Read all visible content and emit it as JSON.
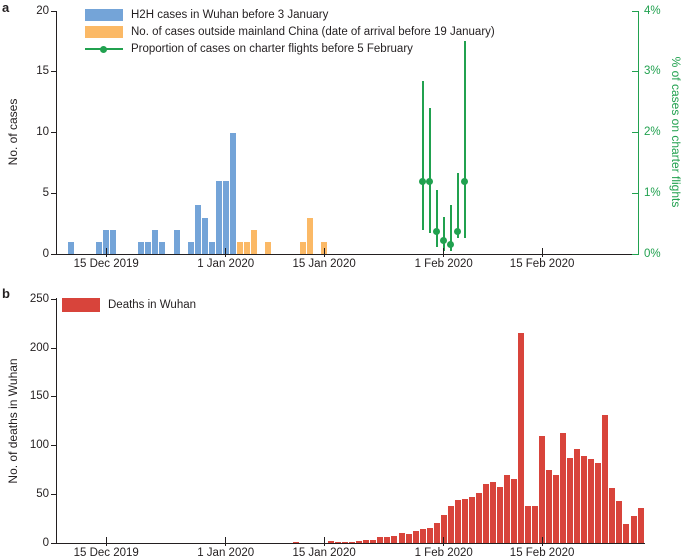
{
  "figure": {
    "panel_a_label": "a",
    "panel_b_label": "b"
  },
  "colors": {
    "h2h_blue": "#74a4d8",
    "outside_orange": "#fbb966",
    "charter_green": "#21a14f",
    "deaths_red": "#d8443b",
    "axis_black": "#231f20"
  },
  "chart_data": [
    {
      "panel": "a",
      "type": "bar",
      "ylabel": "No. of cases",
      "ylim": [
        0,
        20
      ],
      "yticks": [
        0,
        5,
        10,
        15,
        20
      ],
      "y2label": "% of cases on charter flights",
      "y2lim_pct": [
        0,
        4
      ],
      "y2ticks": [
        "0%",
        "1%",
        "2%",
        "3%",
        "4%"
      ],
      "xticks": [
        {
          "date": "2019-12-15",
          "label": "15 Dec 2019"
        },
        {
          "date": "2020-01-01",
          "label": "1 Jan 2020"
        },
        {
          "date": "2020-01-15",
          "label": "15 Jan 2020"
        },
        {
          "date": "2020-02-01",
          "label": "1 Feb 2020"
        },
        {
          "date": "2020-02-15",
          "label": "15 Feb 2020"
        }
      ],
      "series": [
        {
          "name": "H2H cases in Wuhan before 3 January",
          "type": "bar",
          "color": "#74a4d8",
          "data": [
            [
              "2019-12-10",
              1
            ],
            [
              "2019-12-14",
              1
            ],
            [
              "2019-12-15",
              2
            ],
            [
              "2019-12-16",
              2
            ],
            [
              "2019-12-20",
              1
            ],
            [
              "2019-12-21",
              1
            ],
            [
              "2019-12-22",
              2
            ],
            [
              "2019-12-23",
              1
            ],
            [
              "2019-12-25",
              2
            ],
            [
              "2019-12-27",
              1
            ],
            [
              "2019-12-28",
              4
            ],
            [
              "2019-12-29",
              3
            ],
            [
              "2019-12-30",
              1
            ],
            [
              "2019-12-31",
              6
            ],
            [
              "2020-01-01",
              6
            ],
            [
              "2020-01-02",
              10
            ]
          ]
        },
        {
          "name": "No. of cases outside mainland China (date of arrival before 19 January)",
          "type": "bar",
          "color": "#fbb966",
          "data": [
            [
              "2020-01-03",
              1
            ],
            [
              "2020-01-04",
              1
            ],
            [
              "2020-01-05",
              2
            ],
            [
              "2020-01-07",
              1
            ],
            [
              "2020-01-12",
              1
            ],
            [
              "2020-01-13",
              3
            ],
            [
              "2020-01-15",
              1
            ]
          ]
        },
        {
          "name": "Proportion of cases on charter flights before 5 February",
          "type": "scatter-errorbar",
          "axis": "right",
          "color": "#21a14f",
          "data": [
            [
              "2020-01-29",
              1.2,
              0.4,
              2.85
            ],
            [
              "2020-01-30",
              1.2,
              0.35,
              2.4
            ],
            [
              "2020-01-31",
              0.37,
              0.12,
              1.05
            ],
            [
              "2020-02-01",
              0.22,
              0.05,
              0.61
            ],
            [
              "2020-02-02",
              0.15,
              0.05,
              0.8
            ],
            [
              "2020-02-03",
              0.37,
              0.26,
              1.33
            ],
            [
              "2020-02-04",
              1.2,
              0.26,
              3.5
            ]
          ]
        }
      ]
    },
    {
      "panel": "b",
      "type": "bar",
      "ylabel": "No. of deaths in Wuhan",
      "ylim": [
        0,
        250
      ],
      "yticks": [
        0,
        50,
        100,
        150,
        200,
        250
      ],
      "xticks": [
        {
          "date": "2019-12-15",
          "label": "15 Dec 2019"
        },
        {
          "date": "2020-01-01",
          "label": "1 Jan 2020"
        },
        {
          "date": "2020-01-15",
          "label": "15 Jan 2020"
        },
        {
          "date": "2020-02-01",
          "label": "1 Feb 2020"
        },
        {
          "date": "2020-02-15",
          "label": "15 Feb 2020"
        }
      ],
      "series": [
        {
          "name": "Deaths in Wuhan",
          "type": "bar",
          "color": "#d8443b",
          "data": [
            [
              "2020-01-11",
              1
            ],
            [
              "2020-01-16",
              2
            ],
            [
              "2020-01-17",
              1
            ],
            [
              "2020-01-18",
              1
            ],
            [
              "2020-01-19",
              1
            ],
            [
              "2020-01-20",
              2
            ],
            [
              "2020-01-21",
              3
            ],
            [
              "2020-01-22",
              3
            ],
            [
              "2020-01-23",
              6
            ],
            [
              "2020-01-24",
              6
            ],
            [
              "2020-01-25",
              7
            ],
            [
              "2020-01-26",
              10
            ],
            [
              "2020-01-27",
              9
            ],
            [
              "2020-01-28",
              12
            ],
            [
              "2020-01-29",
              14
            ],
            [
              "2020-01-30",
              15
            ],
            [
              "2020-01-31",
              21
            ],
            [
              "2020-02-01",
              29
            ],
            [
              "2020-02-02",
              38
            ],
            [
              "2020-02-03",
              44
            ],
            [
              "2020-02-04",
              45
            ],
            [
              "2020-02-05",
              47
            ],
            [
              "2020-02-06",
              51
            ],
            [
              "2020-02-07",
              61
            ],
            [
              "2020-02-08",
              63
            ],
            [
              "2020-02-09",
              58
            ],
            [
              "2020-02-10",
              70
            ],
            [
              "2020-02-11",
              66
            ],
            [
              "2020-02-12",
              216
            ],
            [
              "2020-02-13",
              38
            ],
            [
              "2020-02-14",
              38
            ],
            [
              "2020-02-15",
              110
            ],
            [
              "2020-02-16",
              75
            ],
            [
              "2020-02-17",
              70
            ],
            [
              "2020-02-18",
              113
            ],
            [
              "2020-02-19",
              87
            ],
            [
              "2020-02-20",
              97
            ],
            [
              "2020-02-21",
              89
            ],
            [
              "2020-02-22",
              86
            ],
            [
              "2020-02-23",
              82
            ],
            [
              "2020-02-24",
              131
            ],
            [
              "2020-02-25",
              56
            ],
            [
              "2020-02-26",
              43
            ],
            [
              "2020-02-27",
              20
            ],
            [
              "2020-02-28",
              28
            ],
            [
              "2020-02-29",
              36
            ]
          ]
        }
      ]
    }
  ]
}
